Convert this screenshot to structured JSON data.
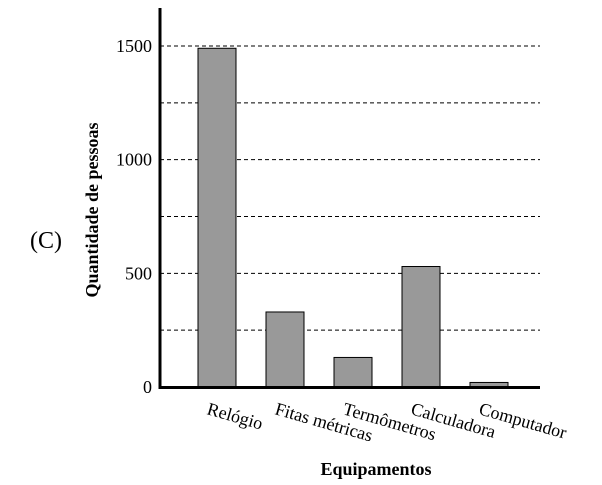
{
  "panel_label": "(C)",
  "chart_data": {
    "type": "bar",
    "categories": [
      "Relógio",
      "Fitas métricas",
      "Termômetros",
      "Calculadora",
      "Computador"
    ],
    "values": [
      1490,
      330,
      130,
      530,
      20
    ],
    "xlabel": "Equipamentos",
    "ylabel": "Quantidade de pessoas",
    "ylim": [
      0,
      1500
    ],
    "yticks": [
      0,
      500,
      1000,
      1500
    ],
    "gridlines": [
      250,
      500,
      750,
      1000,
      1250,
      1500
    ],
    "grid": "dashed horizontal",
    "colors": {
      "bar_fill": "#999999",
      "bar_stroke": "#000000",
      "axis": "#000000"
    }
  }
}
